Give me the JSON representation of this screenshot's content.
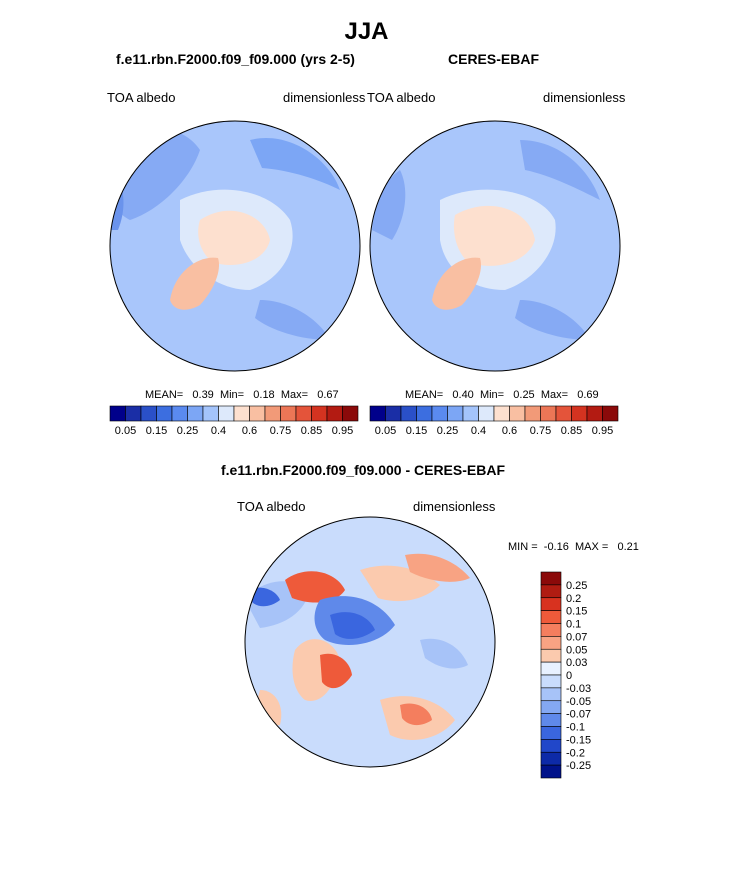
{
  "page": {
    "title": "JJA"
  },
  "panels": [
    {
      "title": "f.e11.rbn.F2000.f09_f09.000 (yrs 2-5)",
      "left_label": "TOA albedo",
      "right_label": "dimensionless",
      "stats": {
        "mean_label": "MEAN=",
        "mean": "0.39",
        "min_label": "Min=",
        "min": "0.18",
        "max_label": "Max=",
        "max": "0.67"
      }
    },
    {
      "title": "CERES-EBAF",
      "left_label": "TOA albedo",
      "right_label": "dimensionless",
      "stats": {
        "mean_label": "MEAN=",
        "mean": "0.40",
        "min_label": "Min=",
        "min": "0.25",
        "max_label": "Max=",
        "max": "0.69"
      }
    },
    {
      "title": "f.e11.rbn.F2000.f09_f09.000 - CERES-EBAF",
      "left_label": "TOA albedo",
      "right_label": "dimensionless",
      "stats": {
        "min_label": "MIN =",
        "min": "-0.16",
        "max_label": "MAX =",
        "max": "0.21"
      }
    }
  ],
  "colorbar_abs": {
    "colors": [
      "#00008b",
      "#1a2ea6",
      "#2a50c8",
      "#3c6ee0",
      "#5a8af0",
      "#7ca6f5",
      "#a4c4fb",
      "#dde9fb",
      "#fde0cf",
      "#f9bfa2",
      "#f29a78",
      "#ec7656",
      "#e4543a",
      "#d43320",
      "#b31b12",
      "#8b0a0a"
    ],
    "tick_labels": [
      "0.05",
      "0.15",
      "0.25",
      "0.4",
      "0.6",
      "0.75",
      "0.85",
      "0.95"
    ]
  },
  "colorbar_diff": {
    "colors": [
      "#8b0a0a",
      "#b01c12",
      "#d8321f",
      "#ee5a3a",
      "#f47e5e",
      "#f8a383",
      "#fbcaae",
      "#e8f1ff",
      "#c9dcfc",
      "#a7c3f8",
      "#84a8f2",
      "#5f89ea",
      "#3a66df",
      "#2147c9",
      "#0d2aa8",
      "#00128a"
    ],
    "tick_labels": [
      "0.25",
      "0.2",
      "0.15",
      "0.1",
      "0.07",
      "0.05",
      "0.03",
      "0",
      "-0.03",
      "-0.05",
      "-0.07",
      "-0.1",
      "-0.15",
      "-0.2",
      "-0.25"
    ]
  },
  "chart_data": [
    {
      "type": "heatmap",
      "projection": "north-polar-stereographic",
      "title": "f.e11.rbn.F2000.f09_f09.000 (yrs 2-5)",
      "variable": "TOA albedo",
      "units": "dimensionless",
      "mean": 0.39,
      "min": 0.18,
      "max": 0.67,
      "contour_levels": [
        0.05,
        0.1,
        0.15,
        0.2,
        0.25,
        0.3,
        0.35,
        0.4,
        0.5,
        0.6,
        0.7,
        0.75,
        0.8,
        0.85,
        0.9,
        0.95
      ]
    },
    {
      "type": "heatmap",
      "projection": "north-polar-stereographic",
      "title": "CERES-EBAF",
      "variable": "TOA albedo",
      "units": "dimensionless",
      "mean": 0.4,
      "min": 0.25,
      "max": 0.69,
      "contour_levels": [
        0.05,
        0.1,
        0.15,
        0.2,
        0.25,
        0.3,
        0.35,
        0.4,
        0.5,
        0.6,
        0.7,
        0.75,
        0.8,
        0.85,
        0.9,
        0.95
      ]
    },
    {
      "type": "heatmap",
      "projection": "north-polar-stereographic",
      "title": "f.e11.rbn.F2000.f09_f09.000 - CERES-EBAF",
      "variable": "TOA albedo",
      "units": "dimensionless",
      "min": -0.16,
      "max": 0.21,
      "contour_levels": [
        -0.25,
        -0.2,
        -0.15,
        -0.1,
        -0.07,
        -0.05,
        -0.03,
        0,
        0.03,
        0.05,
        0.07,
        0.1,
        0.15,
        0.2,
        0.25
      ]
    }
  ]
}
